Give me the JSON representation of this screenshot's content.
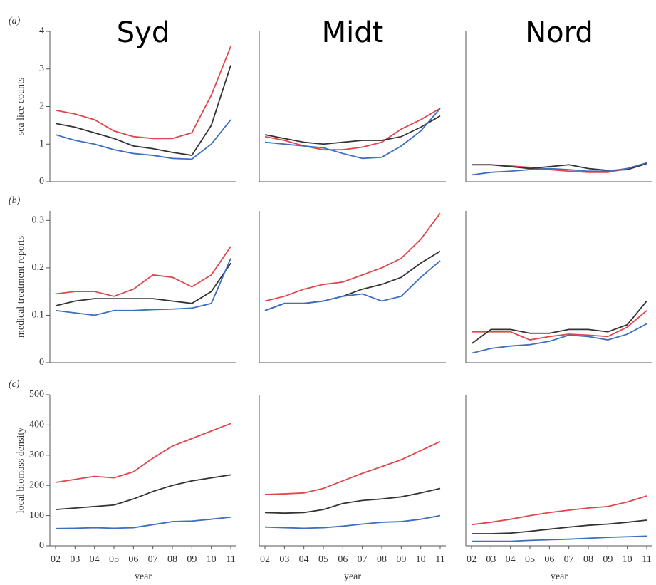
{
  "chart_data": [
    {
      "type": "line",
      "title": "Syd",
      "panel": "(a)",
      "ylabel": "sea lice counts",
      "categories": [
        null,
        null,
        null,
        null,
        null,
        null,
        null,
        null,
        null,
        null
      ],
      "ylim": [
        0,
        4
      ],
      "yticks": [
        0,
        1,
        2,
        3,
        4
      ],
      "series": [
        {
          "color": "#e0474c",
          "values": [
            1.9,
            1.8,
            1.65,
            1.35,
            1.2,
            1.15,
            1.15,
            1.3,
            2.3,
            3.6
          ]
        },
        {
          "color": "#333333",
          "values": [
            1.55,
            1.45,
            1.3,
            1.15,
            0.95,
            0.88,
            0.78,
            0.7,
            1.5,
            3.1
          ]
        },
        {
          "color": "#3d6fc0",
          "values": [
            1.25,
            1.1,
            1.0,
            0.85,
            0.75,
            0.7,
            0.62,
            0.6,
            1.0,
            1.65
          ]
        }
      ]
    },
    {
      "type": "line",
      "title": "Midt",
      "categories": [
        null,
        null,
        null,
        null,
        null,
        null,
        null,
        null,
        null,
        null
      ],
      "ylim": [
        0,
        4
      ],
      "series": [
        {
          "color": "#e0474c",
          "values": [
            1.2,
            1.1,
            0.95,
            0.85,
            0.85,
            0.92,
            1.05,
            1.4,
            1.65,
            1.95
          ]
        },
        {
          "color": "#333333",
          "values": [
            1.25,
            1.15,
            1.05,
            1.0,
            1.05,
            1.1,
            1.1,
            1.2,
            1.45,
            1.75
          ]
        },
        {
          "color": "#3d6fc0",
          "values": [
            1.05,
            1.0,
            0.95,
            0.9,
            0.75,
            0.62,
            0.65,
            0.95,
            1.35,
            1.95
          ]
        }
      ]
    },
    {
      "type": "line",
      "title": "Nord",
      "categories": [
        null,
        null,
        null,
        null,
        null,
        null,
        null,
        null,
        null,
        null
      ],
      "ylim": [
        0,
        4
      ],
      "series": [
        {
          "color": "#e0474c",
          "values": [
            0.45,
            0.45,
            0.42,
            0.38,
            0.32,
            0.28,
            0.25,
            0.25,
            0.35,
            0.5
          ]
        },
        {
          "color": "#333333",
          "values": [
            0.45,
            0.45,
            0.4,
            0.35,
            0.4,
            0.45,
            0.35,
            0.3,
            0.32,
            0.48
          ]
        },
        {
          "color": "#3d6fc0",
          "values": [
            0.18,
            0.25,
            0.28,
            0.32,
            0.35,
            0.32,
            0.28,
            0.28,
            0.35,
            0.5
          ]
        }
      ]
    },
    {
      "type": "line",
      "panel": "(b)",
      "ylabel": "medical treatment reports",
      "categories": [
        null,
        null,
        null,
        null,
        null,
        null,
        null,
        null,
        null,
        null
      ],
      "ylim": [
        0,
        0.32
      ],
      "yticks": [
        0,
        0.1,
        0.2,
        0.3
      ],
      "series": [
        {
          "color": "#e0474c",
          "values": [
            0.145,
            0.15,
            0.15,
            0.14,
            0.155,
            0.185,
            0.18,
            0.16,
            0.185,
            0.245
          ]
        },
        {
          "color": "#333333",
          "values": [
            0.12,
            0.13,
            0.135,
            0.135,
            0.135,
            0.135,
            0.13,
            0.125,
            0.15,
            0.21
          ]
        },
        {
          "color": "#3d6fc0",
          "values": [
            0.11,
            0.105,
            0.1,
            0.11,
            0.11,
            0.112,
            0.113,
            0.115,
            0.125,
            0.22
          ]
        }
      ]
    },
    {
      "type": "line",
      "categories": [
        null,
        null,
        null,
        null,
        null,
        null,
        null,
        null,
        null,
        null
      ],
      "ylim": [
        0,
        0.32
      ],
      "series": [
        {
          "color": "#e0474c",
          "values": [
            0.13,
            0.14,
            0.155,
            0.165,
            0.17,
            0.185,
            0.2,
            0.22,
            0.26,
            0.315
          ]
        },
        {
          "color": "#333333",
          "values": [
            0.11,
            0.125,
            0.125,
            0.13,
            0.14,
            0.155,
            0.165,
            0.18,
            0.21,
            0.235
          ]
        },
        {
          "color": "#3d6fc0",
          "values": [
            0.11,
            0.125,
            0.125,
            0.13,
            0.14,
            0.145,
            0.13,
            0.14,
            0.18,
            0.215
          ]
        }
      ]
    },
    {
      "type": "line",
      "categories": [
        null,
        null,
        null,
        null,
        null,
        null,
        null,
        null,
        null,
        null
      ],
      "ylim": [
        0,
        0.32
      ],
      "series": [
        {
          "color": "#e0474c",
          "values": [
            0.065,
            0.065,
            0.065,
            0.048,
            0.055,
            0.06,
            0.058,
            0.055,
            0.075,
            0.11
          ]
        },
        {
          "color": "#333333",
          "values": [
            0.04,
            0.07,
            0.07,
            0.062,
            0.062,
            0.07,
            0.07,
            0.065,
            0.08,
            0.13
          ]
        },
        {
          "color": "#3d6fc0",
          "values": [
            0.02,
            0.03,
            0.035,
            0.038,
            0.045,
            0.058,
            0.055,
            0.048,
            0.06,
            0.082
          ]
        }
      ]
    },
    {
      "type": "line",
      "panel": "(c)",
      "ylabel": "local biomass density",
      "xlabel": "year",
      "categories": [
        "02",
        "03",
        "04",
        "05",
        "06",
        "07",
        "08",
        "09",
        "10",
        "11"
      ],
      "ylim": [
        0,
        500
      ],
      "yticks": [
        0,
        100,
        200,
        300,
        400,
        500
      ],
      "series": [
        {
          "color": "#e0474c",
          "values": [
            210,
            220,
            230,
            225,
            245,
            290,
            330,
            355,
            380,
            405
          ]
        },
        {
          "color": "#333333",
          "values": [
            120,
            125,
            130,
            135,
            155,
            180,
            200,
            215,
            225,
            235
          ]
        },
        {
          "color": "#3d6fc0",
          "values": [
            57,
            58,
            60,
            58,
            60,
            70,
            80,
            82,
            88,
            95
          ]
        }
      ]
    },
    {
      "type": "line",
      "xlabel": "year",
      "categories": [
        "02",
        "03",
        "04",
        "05",
        "06",
        "07",
        "08",
        "09",
        "10",
        "11"
      ],
      "ylim": [
        0,
        500
      ],
      "series": [
        {
          "color": "#e0474c",
          "values": [
            170,
            172,
            175,
            190,
            215,
            240,
            262,
            285,
            315,
            345
          ]
        },
        {
          "color": "#333333",
          "values": [
            110,
            108,
            110,
            120,
            140,
            150,
            155,
            162,
            175,
            190
          ]
        },
        {
          "color": "#3d6fc0",
          "values": [
            62,
            60,
            58,
            60,
            65,
            72,
            78,
            80,
            88,
            100
          ]
        }
      ]
    },
    {
      "type": "line",
      "xlabel": "year",
      "categories": [
        "02",
        "03",
        "04",
        "05",
        "06",
        "07",
        "08",
        "09",
        "10",
        "11"
      ],
      "ylim": [
        0,
        500
      ],
      "series": [
        {
          "color": "#e0474c",
          "values": [
            70,
            78,
            88,
            100,
            110,
            118,
            125,
            130,
            145,
            165
          ]
        },
        {
          "color": "#333333",
          "values": [
            40,
            40,
            42,
            48,
            55,
            62,
            68,
            72,
            78,
            85
          ]
        },
        {
          "color": "#3d6fc0",
          "values": [
            15,
            15,
            15,
            18,
            20,
            22,
            25,
            28,
            30,
            32
          ]
        }
      ]
    }
  ]
}
